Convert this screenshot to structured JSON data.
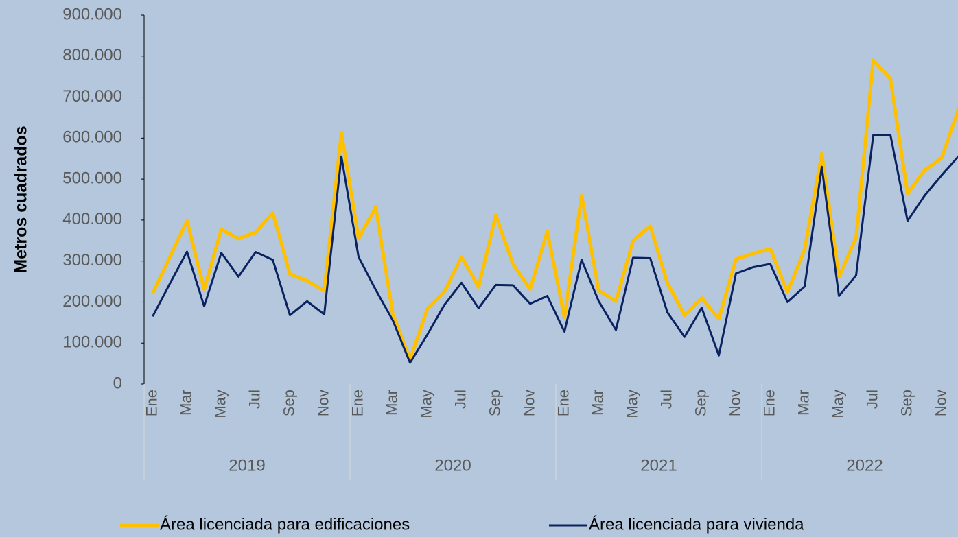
{
  "chart_data": {
    "type": "line",
    "y_label": "Metros cuadrados",
    "categories": [
      "Ene",
      null,
      "Mar",
      null,
      "May",
      null,
      "Jul",
      null,
      "Sep",
      null,
      "Nov",
      null,
      "Ene",
      null,
      "Mar",
      null,
      "May",
      null,
      "Jul",
      null,
      "Sep",
      null,
      "Nov",
      null,
      "Ene",
      null,
      "Mar",
      null,
      "May",
      null,
      "Jul",
      null,
      "Sep",
      null,
      "Nov",
      null,
      "Ene",
      null,
      "Mar",
      null,
      "May",
      null,
      "Jul",
      null,
      "Sep",
      null,
      "Nov",
      null
    ],
    "category_groups": [
      "2019",
      "2020",
      "2021",
      "2022"
    ],
    "series": [
      {
        "name": "Área licenciada para edificaciones",
        "color": "#ffc000",
        "values": [
          222000,
          310000,
          398000,
          232000,
          377000,
          355000,
          370000,
          418000,
          268000,
          252000,
          228000,
          613000,
          355000,
          432000,
          170000,
          60000,
          183000,
          225000,
          310000,
          237000,
          412000,
          292000,
          232000,
          373000,
          163000,
          460000,
          228000,
          202000,
          350000,
          385000,
          247000,
          168000,
          210000,
          160000,
          305000,
          318000,
          330000,
          225000,
          328000,
          562000,
          262000,
          357000,
          790000,
          745000,
          465000,
          522000,
          552000,
          675000
        ]
      },
      {
        "name": "Área licenciada para vivienda",
        "color": "#0b2260",
        "values": [
          165000,
          245000,
          323000,
          190000,
          320000,
          262000,
          322000,
          303000,
          168000,
          202000,
          170000,
          555000,
          310000,
          230000,
          155000,
          52000,
          120000,
          193000,
          247000,
          185000,
          242000,
          241000,
          196000,
          215000,
          128000,
          303000,
          202000,
          132000,
          308000,
          307000,
          175000,
          115000,
          186000,
          70000,
          270000,
          285000,
          293000,
          200000,
          238000,
          530000,
          215000,
          265000,
          607000,
          608000,
          398000,
          460000,
          510000,
          557000
        ]
      }
    ],
    "ylim": [
      0,
      900000
    ],
    "yticks": [
      0,
      {
        "value": 100000,
        "label": "100.000"
      },
      {
        "value": 200000,
        "label": "200.000"
      },
      {
        "value": 300000,
        "label": "300.000"
      },
      {
        "value": 400000,
        "label": "400.000"
      },
      {
        "value": 500000,
        "label": "500.000"
      },
      {
        "value": 600000,
        "label": "600.000"
      },
      {
        "value": 700000,
        "label": "700.000"
      },
      {
        "value": 800000,
        "label": "800.000"
      },
      {
        "value": 900000,
        "label": "900.000"
      }
    ],
    "grid": false,
    "legend": "bottom"
  }
}
